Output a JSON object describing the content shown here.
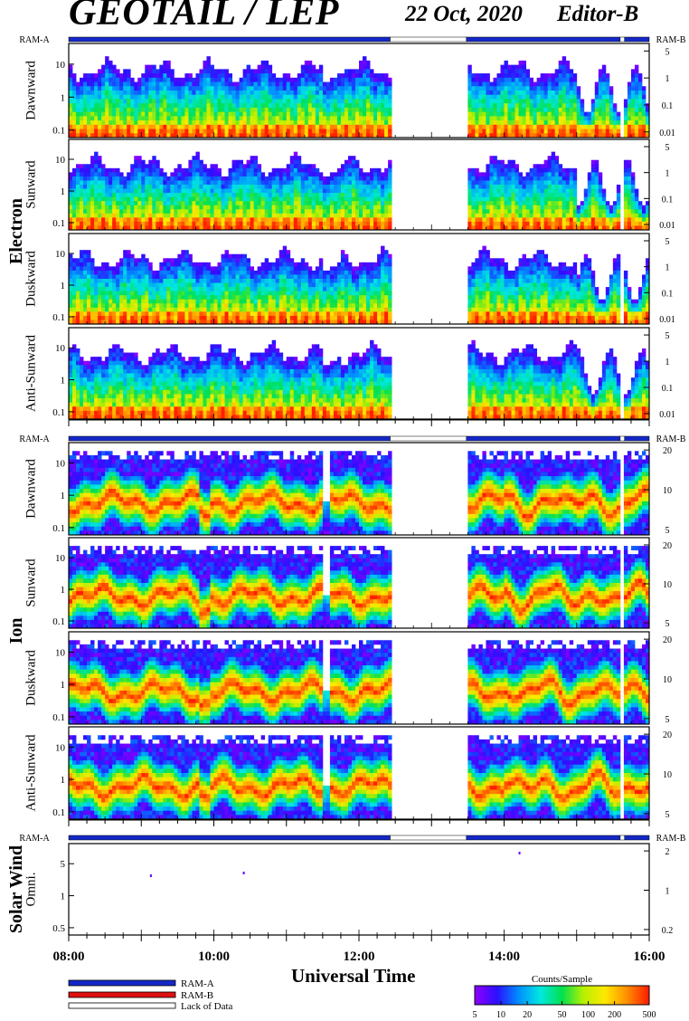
{
  "header": {
    "title": "GEOTAIL / LEP",
    "date": "22 Oct, 2020",
    "editor": "Editor-B"
  },
  "chart_data": {
    "type": "heatmap",
    "x_axis": {
      "label": "Universal Time",
      "range": [
        8.0,
        16.0
      ],
      "tick_labels": [
        "08:00",
        "10:00",
        "12:00",
        "14:00",
        "16:00"
      ],
      "tick_values": [
        8,
        10,
        12,
        14,
        16
      ]
    },
    "ram_labels": {
      "left": "RAM-A",
      "right": "RAM-B"
    },
    "ram_status": [
      {
        "start": 8.0,
        "end": 12.43,
        "state": "RAM-A"
      },
      {
        "start": 12.43,
        "end": 13.48,
        "state": "Lack of Data"
      },
      {
        "start": 13.48,
        "end": 15.6,
        "state": "RAM-A"
      },
      {
        "start": 15.6,
        "end": 15.66,
        "state": "Lack of Data"
      },
      {
        "start": 15.66,
        "end": 16.0,
        "state": "RAM-A"
      }
    ],
    "data_gaps": [
      [
        12.43,
        13.48
      ]
    ],
    "groups": [
      {
        "name": "Electron",
        "left_ticks": [
          "10",
          "1",
          "0.1"
        ],
        "right_ticks": [
          "5",
          "1",
          "0.1",
          "0.01"
        ],
        "panels": [
          {
            "label": "Dawnward"
          },
          {
            "label": "Sunward"
          },
          {
            "label": "Duskward"
          },
          {
            "label": "Anti-Sunward"
          }
        ]
      },
      {
        "name": "Ion",
        "left_ticks": [
          "10",
          "1",
          "0.1"
        ],
        "right_ticks": [
          "20",
          "10",
          "5"
        ],
        "panels": [
          {
            "label": "Dawnward"
          },
          {
            "label": "Sunward"
          },
          {
            "label": "Duskward"
          },
          {
            "label": "Anti-Sunward"
          }
        ]
      },
      {
        "name": "Solar Wind",
        "left_ticks": [
          "5",
          "1",
          "0.5"
        ],
        "right_ticks": [
          "2",
          "1",
          "0.2"
        ],
        "panels": [
          {
            "label": "Omni."
          }
        ]
      }
    ],
    "legend": {
      "items": [
        {
          "label": "RAM-A",
          "color": "#1428c8"
        },
        {
          "label": "RAM-B",
          "color": "#e01010"
        },
        {
          "label": "Lack of Data",
          "color": "#ffffff"
        }
      ]
    },
    "colorbar": {
      "title": "Counts/Sample",
      "tick_labels": [
        "5",
        "10",
        "20",
        "50",
        "100",
        "200",
        "500"
      ],
      "tick_values": [
        5,
        10,
        20,
        50,
        100,
        200,
        500
      ],
      "colors": [
        "#8a00ff",
        "#2a10ff",
        "#0090ff",
        "#00e8e0",
        "#00e050",
        "#b8f000",
        "#ffe800",
        "#ff9000",
        "#ff2000"
      ]
    }
  }
}
